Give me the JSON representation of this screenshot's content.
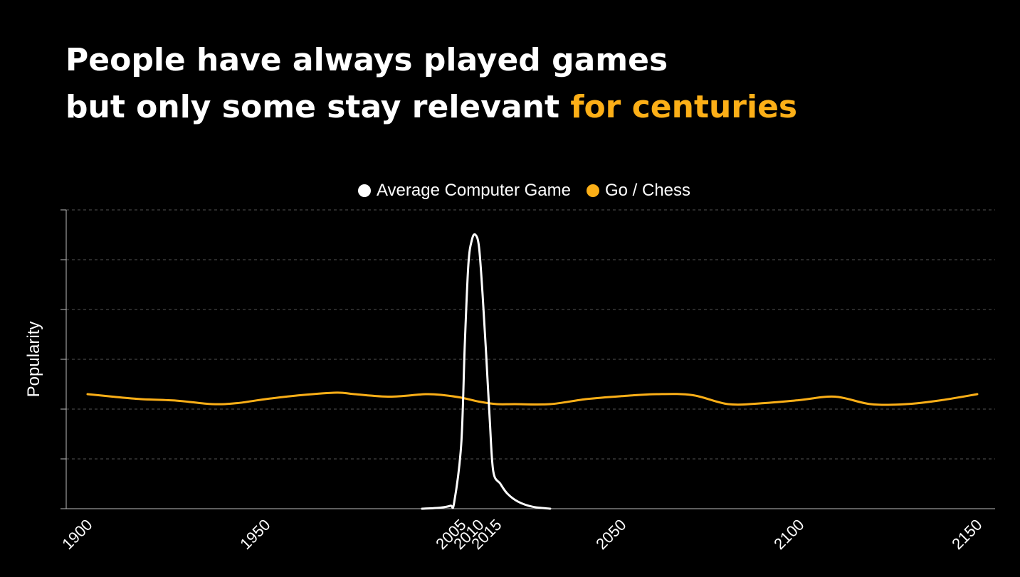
{
  "title": {
    "line1": "People have always played games",
    "line2_prefix": "but only some stay relevant ",
    "line2_highlight": "for centuries"
  },
  "colors": {
    "background": "#000000",
    "text": "#ffffff",
    "accent": "#fcaf17",
    "grid": "#555555",
    "axis": "#bbbbbb"
  },
  "chart_data": {
    "type": "line",
    "title": "",
    "xlabel": "",
    "ylabel": "Popularity",
    "legend_position": "top-center",
    "grid": true,
    "xticks": [
      1900,
      1950,
      2005,
      2010,
      2015,
      2050,
      2100,
      2150
    ],
    "ylim": [
      0,
      6
    ],
    "xlim": [
      1894,
      2155
    ],
    "y_gridlines": [
      1,
      2,
      3,
      4,
      5,
      6
    ],
    "series": [
      {
        "name": "Average Computer Game",
        "color": "#ffffff",
        "points": [
          [
            1994,
            0
          ],
          [
            1999,
            0.02
          ],
          [
            2002,
            0.06
          ],
          [
            2003,
            0.12
          ],
          [
            2005,
            1.3
          ],
          [
            2006,
            3.3
          ],
          [
            2007,
            4.9
          ],
          [
            2008,
            5.4
          ],
          [
            2009,
            5.5
          ],
          [
            2010,
            5.25
          ],
          [
            2011,
            4.3
          ],
          [
            2012,
            3.1
          ],
          [
            2013,
            1.8
          ],
          [
            2014,
            0.75
          ],
          [
            2016,
            0.5
          ],
          [
            2018,
            0.3
          ],
          [
            2021,
            0.14
          ],
          [
            2025,
            0.04
          ],
          [
            2030,
            0
          ]
        ]
      },
      {
        "name": "Go / Chess",
        "color": "#fcaf17",
        "points": [
          [
            1900,
            2.3
          ],
          [
            1907,
            2.25
          ],
          [
            1915,
            2.2
          ],
          [
            1925,
            2.17
          ],
          [
            1935,
            2.1
          ],
          [
            1942,
            2.12
          ],
          [
            1950,
            2.2
          ],
          [
            1960,
            2.28
          ],
          [
            1970,
            2.33
          ],
          [
            1975,
            2.3
          ],
          [
            1985,
            2.25
          ],
          [
            1995,
            2.3
          ],
          [
            2000,
            2.28
          ],
          [
            2005,
            2.23
          ],
          [
            2010,
            2.15
          ],
          [
            2015,
            2.1
          ],
          [
            2020,
            2.1
          ],
          [
            2030,
            2.1
          ],
          [
            2040,
            2.2
          ],
          [
            2050,
            2.26
          ],
          [
            2060,
            2.3
          ],
          [
            2070,
            2.28
          ],
          [
            2080,
            2.1
          ],
          [
            2090,
            2.12
          ],
          [
            2100,
            2.18
          ],
          [
            2110,
            2.25
          ],
          [
            2120,
            2.1
          ],
          [
            2130,
            2.1
          ],
          [
            2140,
            2.18
          ],
          [
            2150,
            2.3
          ]
        ]
      }
    ]
  }
}
